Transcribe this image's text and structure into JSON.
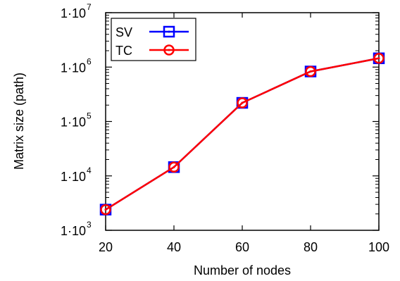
{
  "chart_data": {
    "type": "line",
    "title": "",
    "xlabel": "Number of nodes",
    "ylabel": "Matrix size (path)",
    "x": [
      20,
      40,
      60,
      80,
      100
    ],
    "xlim": [
      20,
      100
    ],
    "xticks": [
      "20",
      "40",
      "60",
      "80",
      "100"
    ],
    "ylim": [
      1000,
      10000000
    ],
    "yscale": "log",
    "yticks": [
      {
        "value": 1000,
        "mantissa": "1·10",
        "exponent": "3"
      },
      {
        "value": 10000,
        "mantissa": "1·10",
        "exponent": "4"
      },
      {
        "value": 100000,
        "mantissa": "1·10",
        "exponent": "5"
      },
      {
        "value": 1000000,
        "mantissa": "1·10",
        "exponent": "6"
      },
      {
        "value": 10000000,
        "mantissa": "1·10",
        "exponent": "7"
      }
    ],
    "grid": false,
    "legend_position": "top-left",
    "series": [
      {
        "name": "SV",
        "color": "#0000ff",
        "marker": "square-dot",
        "values": [
          2400,
          14500,
          220000,
          830000,
          1450000
        ]
      },
      {
        "name": "TC",
        "color": "#ff0000",
        "marker": "circle-dot",
        "values": [
          2400,
          14500,
          220000,
          830000,
          1450000
        ]
      }
    ]
  }
}
